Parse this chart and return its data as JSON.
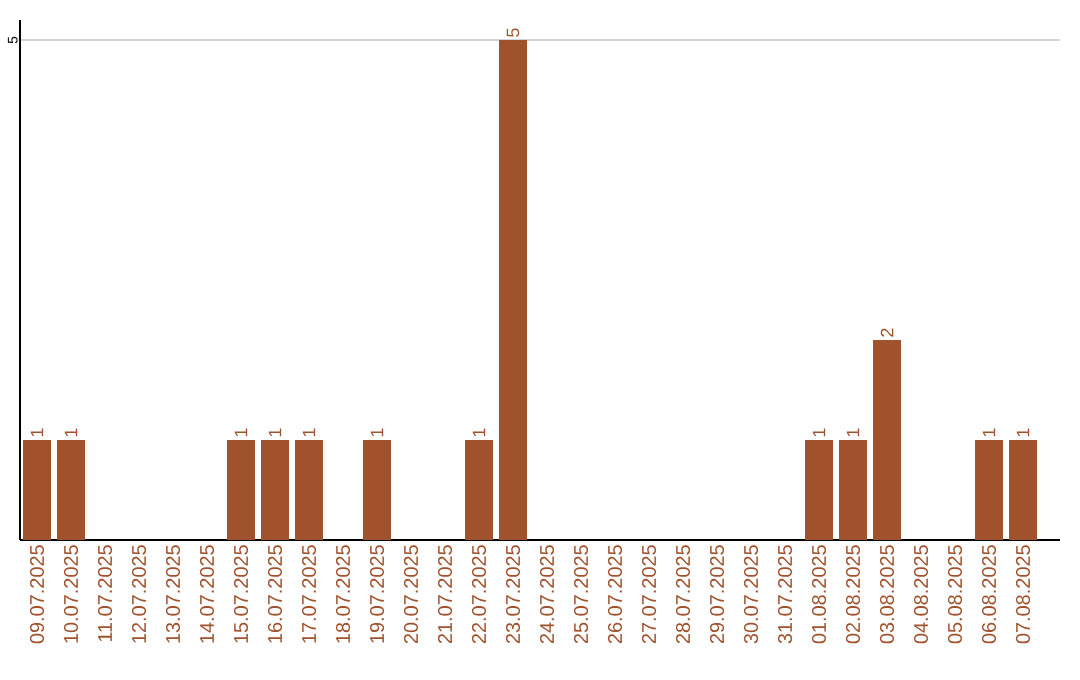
{
  "chart_data": {
    "type": "bar",
    "categories": [
      "09.07.2025",
      "10.07.2025",
      "11.07.2025",
      "12.07.2025",
      "13.07.2025",
      "14.07.2025",
      "15.07.2025",
      "16.07.2025",
      "17.07.2025",
      "18.07.2025",
      "19.07.2025",
      "20.07.2025",
      "21.07.2025",
      "22.07.2025",
      "23.07.2025",
      "24.07.2025",
      "25.07.2025",
      "26.07.2025",
      "27.07.2025",
      "28.07.2025",
      "29.07.2025",
      "30.07.2025",
      "31.07.2025",
      "01.08.2025",
      "02.08.2025",
      "03.08.2025",
      "04.08.2025",
      "05.08.2025",
      "06.08.2025",
      "07.08.2025"
    ],
    "values": [
      1,
      1,
      0,
      0,
      0,
      0,
      1,
      1,
      1,
      0,
      1,
      0,
      0,
      1,
      5,
      0,
      0,
      0,
      0,
      0,
      0,
      0,
      0,
      1,
      1,
      2,
      0,
      0,
      1,
      1
    ],
    "value_labels": [
      "1",
      "1",
      null,
      null,
      null,
      null,
      "1",
      "1",
      "1",
      null,
      "1",
      null,
      null,
      "1",
      "5",
      null,
      null,
      null,
      null,
      null,
      null,
      null,
      null,
      "1",
      "1",
      "2",
      null,
      null,
      "1",
      "1"
    ],
    "color": "#a0522d",
    "ylim": [
      0,
      5.2
    ],
    "yticks": [
      5
    ],
    "grid": "y"
  }
}
